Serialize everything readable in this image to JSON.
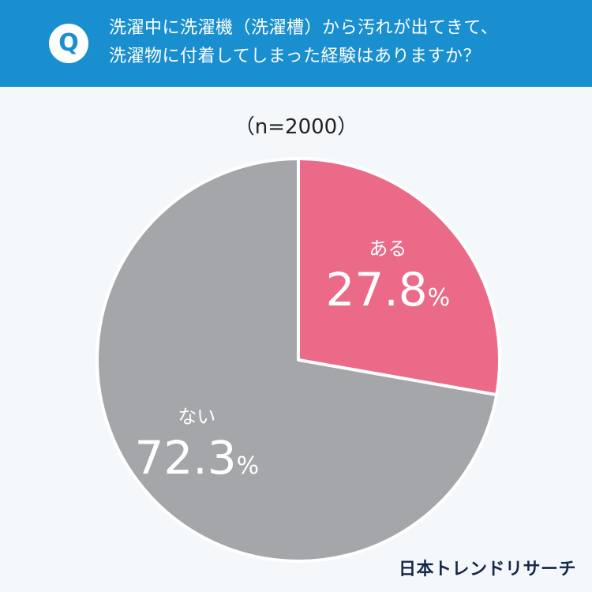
{
  "question": {
    "badge": "Q",
    "line1": "洗濯中に洗濯機（洗濯槽）から汚れが出てきて、",
    "line2": "洗濯物に付着してしまった経験はありますか？"
  },
  "sample_size": "（n=2000）",
  "brand": "日本トレンドリサーチ",
  "colors": {
    "header": "#1a8fd0",
    "yes": "#ea6a88",
    "no": "#a5a6aa",
    "background": "#f5f8fb"
  },
  "chart_data": {
    "type": "pie",
    "slices": [
      {
        "label": "ある",
        "value": 27.8,
        "display": "27.8",
        "unit": "%",
        "color": "#ea6a88"
      },
      {
        "label": "ない",
        "value": 72.3,
        "display": "72.3",
        "unit": "%",
        "color": "#a5a6aa"
      }
    ],
    "start": "top",
    "direction": "clockwise"
  }
}
